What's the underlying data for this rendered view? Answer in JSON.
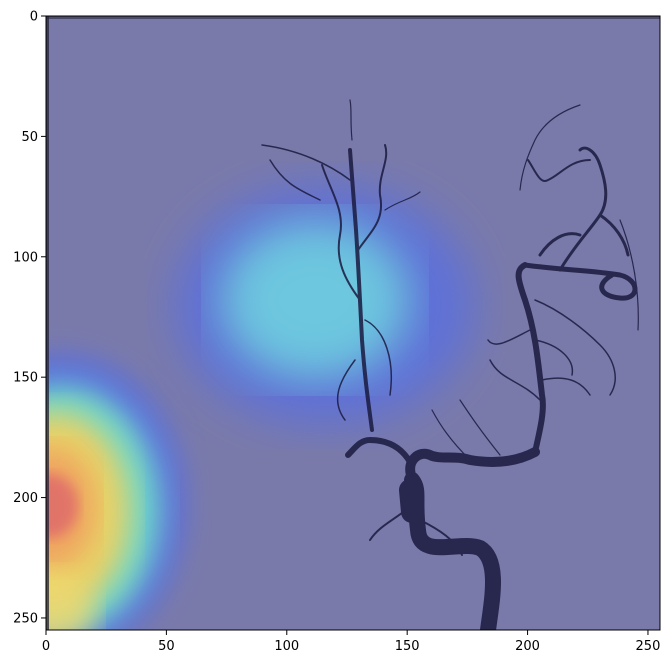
{
  "chart_data": {
    "type": "heatmap",
    "title": "",
    "xlabel": "",
    "ylabel": "",
    "xlim": [
      0,
      255
    ],
    "ylim": [
      255,
      0
    ],
    "x_ticks": [
      0,
      50,
      100,
      150,
      200,
      250
    ],
    "y_ticks": [
      0,
      50,
      100,
      150,
      200,
      250
    ],
    "x_tick_labels": [
      "0",
      "50",
      "100",
      "150",
      "200",
      "250"
    ],
    "y_tick_labels": [
      "0",
      "50",
      "100",
      "150",
      "200",
      "250"
    ],
    "grid": false,
    "colormap": "jet",
    "overlay_base": "angiogram-grayscale",
    "base_color": "#7a7aaa",
    "vessel_color": "#1a1a40",
    "hotspots": [
      {
        "x": 15,
        "y": 207,
        "level": 1.0
      },
      {
        "x": 110,
        "y": 120,
        "level": 0.45
      }
    ]
  }
}
